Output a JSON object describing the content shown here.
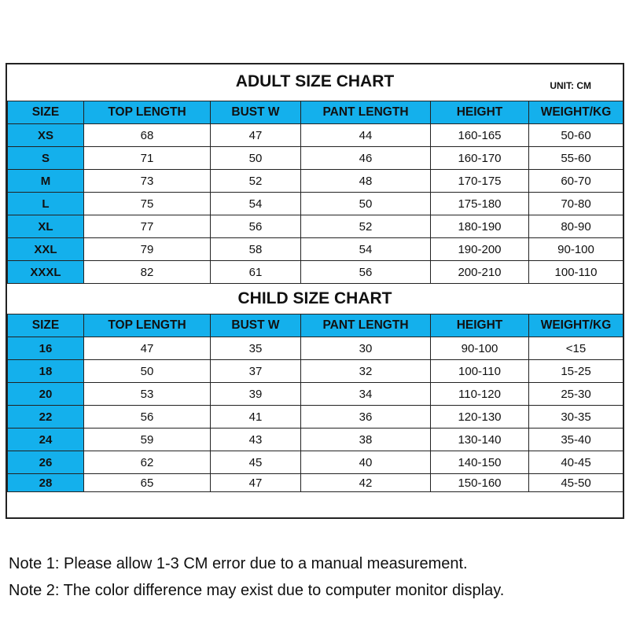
{
  "adult": {
    "title": "ADULT SIZE CHART",
    "unit": "UNIT: CM",
    "headers": [
      "SIZE",
      "TOP LENGTH",
      "BUST W",
      "PANT LENGTH",
      "HEIGHT",
      "WEIGHT/KG"
    ],
    "rows": [
      [
        "XS",
        "68",
        "47",
        "44",
        "160-165",
        "50-60"
      ],
      [
        "S",
        "71",
        "50",
        "46",
        "160-170",
        "55-60"
      ],
      [
        "M",
        "73",
        "52",
        "48",
        "170-175",
        "60-70"
      ],
      [
        "L",
        "75",
        "54",
        "50",
        "175-180",
        "70-80"
      ],
      [
        "XL",
        "77",
        "56",
        "52",
        "180-190",
        "80-90"
      ],
      [
        "XXL",
        "79",
        "58",
        "54",
        "190-200",
        "90-100"
      ],
      [
        "XXXL",
        "82",
        "61",
        "56",
        "200-210",
        "100-110"
      ]
    ]
  },
  "child": {
    "title": "CHILD SIZE CHART",
    "headers": [
      "SIZE",
      "TOP LENGTH",
      "BUST W",
      "PANT LENGTH",
      "HEIGHT",
      "WEIGHT/KG"
    ],
    "rows": [
      [
        "16",
        "47",
        "35",
        "30",
        "90-100",
        "<15"
      ],
      [
        "18",
        "50",
        "37",
        "32",
        "100-110",
        "15-25"
      ],
      [
        "20",
        "53",
        "39",
        "34",
        "110-120",
        "25-30"
      ],
      [
        "22",
        "56",
        "41",
        "36",
        "120-130",
        "30-35"
      ],
      [
        "24",
        "59",
        "43",
        "38",
        "130-140",
        "35-40"
      ],
      [
        "26",
        "62",
        "45",
        "40",
        "140-150",
        "40-45"
      ],
      [
        "28",
        "65",
        "47",
        "42",
        "150-160",
        "45-50"
      ]
    ]
  },
  "notes": [
    "Note 1: Please allow 1-3 CM error due to a manual measurement.",
    "Note 2: The color difference may exist due to computer monitor display."
  ],
  "colors": {
    "header": "#14b0ec"
  }
}
